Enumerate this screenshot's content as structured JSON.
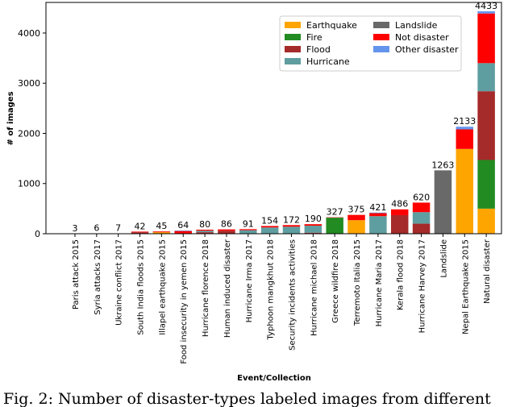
{
  "chart_data": {
    "type": "stacked_bar",
    "ylabel": "# of images",
    "xlabel": "Event/Collection",
    "caption": "Fig. 2: Number of disaster-types labeled images from different",
    "categories": [
      "Paris attack 2015",
      "Syria attacks 2017",
      "Ukraine conflict 2017",
      "South India floods 2015",
      "Illapel earthquake 2015",
      "Food insecurity in yemen 2015",
      "Hurricane florence 2018",
      "Human induced disaster",
      "Hurricane Irma 2017",
      "Typhoon mangkhut 2018",
      "Security incidents activities",
      "Hurricane michael 2018",
      "Greece wildfire 2018",
      "Terremoto Italia 2015",
      "Hurricane Maria 2017",
      "Kerala flood 2018",
      "Hurricane Harvey 2017",
      "Landslide",
      "Nepal Earthquake 2015",
      "Natural disaster"
    ],
    "series": [
      {
        "name": "Earthquake",
        "color": "#ffa500",
        "values": [
          0,
          0,
          0,
          0,
          30,
          0,
          0,
          0,
          0,
          0,
          0,
          0,
          0,
          270,
          0,
          0,
          0,
          0,
          1690,
          500
        ]
      },
      {
        "name": "Fire",
        "color": "#228b22",
        "values": [
          0,
          0,
          0,
          0,
          0,
          0,
          0,
          0,
          0,
          0,
          0,
          0,
          320,
          0,
          0,
          0,
          0,
          0,
          0,
          970
        ]
      },
      {
        "name": "Flood",
        "color": "#a52a2a",
        "values": [
          0,
          0,
          0,
          30,
          0,
          0,
          30,
          60,
          0,
          0,
          0,
          20,
          0,
          0,
          0,
          370,
          200,
          0,
          0,
          1370
        ]
      },
      {
        "name": "Hurricane",
        "color": "#5f9ea0",
        "values": [
          0,
          0,
          0,
          0,
          0,
          0,
          30,
          0,
          70,
          125,
          140,
          140,
          0,
          0,
          350,
          0,
          230,
          0,
          0,
          560
        ]
      },
      {
        "name": "Landslide",
        "color": "#696969",
        "values": [
          0,
          0,
          0,
          0,
          0,
          0,
          0,
          0,
          0,
          0,
          0,
          0,
          0,
          0,
          0,
          0,
          0,
          1263,
          0,
          0
        ]
      },
      {
        "name": "Not disaster",
        "color": "#ff0000",
        "values": [
          3,
          6,
          7,
          12,
          15,
          54,
          20,
          26,
          21,
          29,
          32,
          30,
          7,
          105,
          60,
          116,
          190,
          0,
          390,
          990
        ]
      },
      {
        "name": "Other disaster",
        "color": "#6495ed",
        "values": [
          0,
          0,
          0,
          0,
          0,
          10,
          0,
          0,
          0,
          0,
          0,
          0,
          0,
          0,
          11,
          0,
          0,
          0,
          53,
          43
        ]
      }
    ],
    "totals": [
      3,
      6,
      7,
      42,
      45,
      64,
      80,
      86,
      91,
      154,
      172,
      190,
      327,
      375,
      421,
      486,
      620,
      1263,
      2133,
      4433
    ],
    "ylim": [
      0,
      4610
    ],
    "yticks": [
      0,
      1000,
      2000,
      3000,
      4000
    ],
    "legend": "upper right",
    "grid": false
  }
}
